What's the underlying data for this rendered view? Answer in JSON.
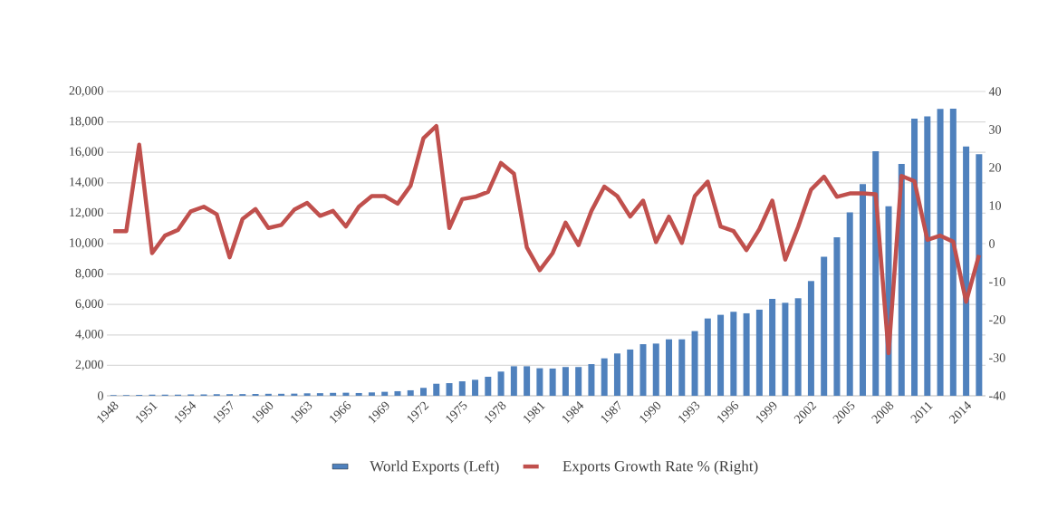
{
  "chart_data": {
    "type": "bar",
    "categories": [
      "1948",
      null,
      null,
      "1951",
      null,
      null,
      "1954",
      null,
      null,
      "1957",
      null,
      null,
      "1960",
      null,
      null,
      "1963",
      null,
      null,
      "1966",
      null,
      null,
      "1969",
      null,
      null,
      "1972",
      null,
      null,
      "1975",
      null,
      null,
      "1978",
      null,
      null,
      "1981",
      null,
      null,
      "1984",
      null,
      null,
      "1987",
      null,
      null,
      "1990",
      null,
      null,
      "1993",
      null,
      null,
      "1996",
      null,
      null,
      "1999",
      null,
      null,
      "2002",
      null,
      null,
      "2005",
      null,
      null,
      "2008",
      null,
      null,
      "2011",
      null,
      null,
      "2014",
      null
    ],
    "series": [
      {
        "name": "World Exports (Left)",
        "color": "#4f81bd",
        "values": [
          50,
          50,
          60,
          80,
          80,
          80,
          90,
          90,
          100,
          110,
          110,
          120,
          130,
          130,
          140,
          160,
          170,
          190,
          200,
          180,
          220,
          260,
          300,
          360,
          520,
          790,
          830,
          950,
          1050,
          1250,
          1590,
          1940,
          1940,
          1810,
          1790,
          1890,
          1890,
          2080,
          2460,
          2780,
          3040,
          3390,
          3430,
          3710,
          3710,
          4250,
          5080,
          5320,
          5520,
          5420,
          5660,
          6370,
          6110,
          6410,
          7540,
          9130,
          10420,
          12060,
          13910,
          16070,
          12460,
          15240,
          18210,
          18370,
          18850,
          18870,
          16390,
          15870
        ]
      },
      {
        "name": "Exports Growth Rate % (Right)",
        "type": "line",
        "axis": "y2",
        "color": "#c0504d",
        "values": [
          3.3,
          3.3,
          26,
          -2.5,
          2.1,
          3.6,
          8.5,
          9.7,
          7.7,
          -3.6,
          6.5,
          9.1,
          4.1,
          4.9,
          8.9,
          10.7,
          7.3,
          8.6,
          4.5,
          9.7,
          12.5,
          12.5,
          10.5,
          15.2,
          27.7,
          30.9,
          4.1,
          11.7,
          12.3,
          13.6,
          21.2,
          18.4,
          -1,
          -7,
          -2.5,
          5.5,
          -0.4,
          8.6,
          15,
          12.5,
          7.1,
          11.3,
          0.4,
          7.1,
          0.2,
          12.5,
          16.3,
          4.5,
          3.3,
          -1.7,
          3.8,
          11.3,
          -4.2,
          4.4,
          14.2,
          17.6,
          12.3,
          13.2,
          13.2,
          13,
          -28.8,
          17.8,
          16.4,
          1,
          2.1,
          0.5,
          -15.3,
          -3
        ]
      }
    ],
    "ylim": [
      0,
      20000
    ],
    "yticks": [
      0,
      {
        "value": 2000,
        "label": "2,000"
      },
      {
        "value": 4000,
        "label": "4,000"
      },
      {
        "value": 6000,
        "label": "6,000"
      },
      {
        "value": 8000,
        "label": "8,000"
      },
      {
        "value": 10000,
        "label": "10,000"
      },
      {
        "value": 12000,
        "label": "12,000"
      },
      {
        "value": 14000,
        "label": "14,000"
      },
      {
        "value": 16000,
        "label": "16,000"
      },
      {
        "value": 18000,
        "label": "18,000"
      },
      {
        "value": 20000,
        "label": "20,000"
      }
    ],
    "y2lim": [
      -40,
      40
    ],
    "y2ticks": [
      -40,
      -30,
      -20,
      -10,
      0,
      10,
      20,
      30,
      40
    ],
    "grid": "y",
    "legend": "bottom",
    "marker": "none"
  }
}
